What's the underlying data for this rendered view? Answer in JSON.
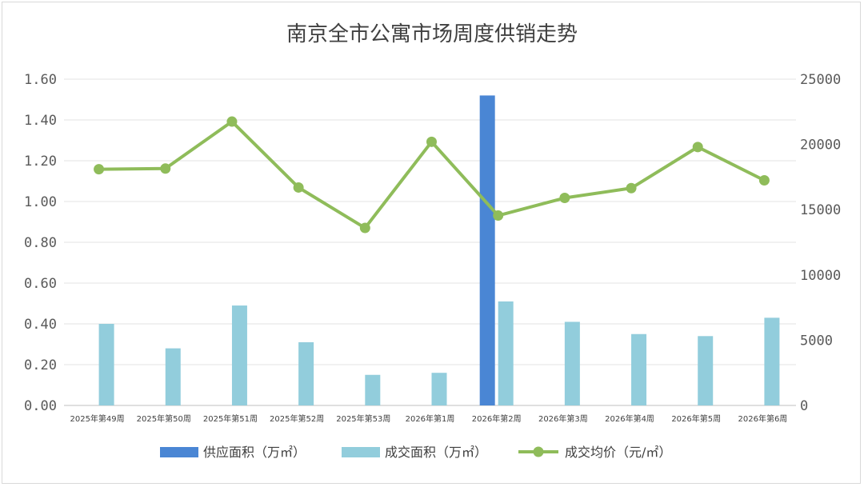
{
  "chart_data": {
    "type": "bar",
    "title": "南京全市公寓市场周度供销走势",
    "categories": [
      "2025年第49周",
      "2025年第50周",
      "2025年第51周",
      "2025年第52周",
      "2025年第53周",
      "2026年第1周",
      "2026年第2周",
      "2026年第3周",
      "2026年第4周",
      "2026年第5周",
      "2026年第6周"
    ],
    "series": [
      {
        "name": "供应面积（万㎡）",
        "kind": "bar",
        "axis": "left",
        "color": "#4a86d4",
        "values": [
          0,
          0,
          0,
          0,
          0,
          0,
          1.52,
          0,
          0,
          0,
          0
        ]
      },
      {
        "name": "成交面积（万㎡）",
        "kind": "bar",
        "axis": "left",
        "color": "#92cddc",
        "values": [
          0.4,
          0.28,
          0.49,
          0.31,
          0.15,
          0.16,
          0.51,
          0.41,
          0.35,
          0.34,
          0.43
        ]
      },
      {
        "name": "成交均价（元/㎡）",
        "kind": "line",
        "axis": "right",
        "color": "#8fbc5a",
        "values": [
          18100,
          18150,
          21750,
          16700,
          13600,
          20200,
          14550,
          15900,
          16650,
          19800,
          17250
        ]
      }
    ],
    "y_left": {
      "min": 0,
      "max": 1.6,
      "ticks": [
        "0.00",
        "0.20",
        "0.40",
        "0.60",
        "0.80",
        "1.00",
        "1.20",
        "1.40",
        "1.60"
      ]
    },
    "y_right": {
      "min": 0,
      "max": 25000,
      "ticks": [
        "0",
        "5000",
        "10000",
        "15000",
        "20000",
        "25000"
      ]
    },
    "grid": true,
    "legend_position": "bottom"
  }
}
